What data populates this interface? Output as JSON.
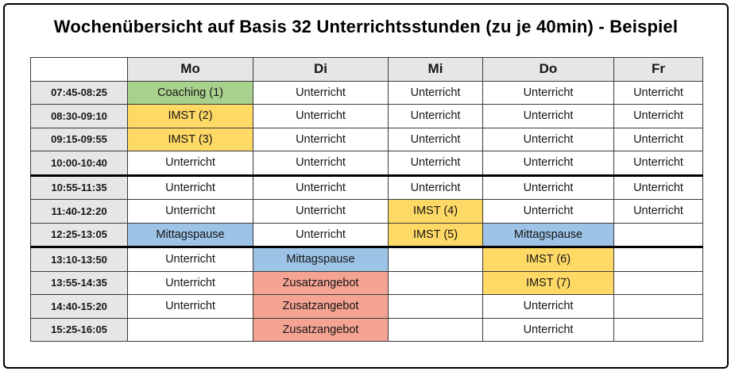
{
  "title": "Wochenübersicht auf Basis 32 Unterrichtsstunden (zu je 40min) - Beispiel",
  "days": [
    "Mo",
    "Di",
    "Mi",
    "Do",
    "Fr"
  ],
  "colors": {
    "gray": "#E7E6E6",
    "green": "#A9D18E",
    "yellow": "#FFD966",
    "blue": "#9DC3E6",
    "salmon": "#F5A392",
    "border": "#3A3A3A"
  },
  "rows": [
    {
      "time": "07:45-08:25",
      "section_break": false,
      "cells": [
        {
          "t": "Coaching (1)",
          "c": "green"
        },
        {
          "t": "Unterricht",
          "c": "none"
        },
        {
          "t": "Unterricht",
          "c": "none"
        },
        {
          "t": "Unterricht",
          "c": "none"
        },
        {
          "t": "Unterricht",
          "c": "none"
        }
      ]
    },
    {
      "time": "08:30-09:10",
      "section_break": false,
      "cells": [
        {
          "t": "IMST (2)",
          "c": "yellow"
        },
        {
          "t": "Unterricht",
          "c": "none"
        },
        {
          "t": "Unterricht",
          "c": "none"
        },
        {
          "t": "Unterricht",
          "c": "none"
        },
        {
          "t": "Unterricht",
          "c": "none"
        }
      ]
    },
    {
      "time": "09:15-09:55",
      "section_break": false,
      "cells": [
        {
          "t": "IMST (3)",
          "c": "yellow"
        },
        {
          "t": "Unterricht",
          "c": "none"
        },
        {
          "t": "Unterricht",
          "c": "none"
        },
        {
          "t": "Unterricht",
          "c": "none"
        },
        {
          "t": "Unterricht",
          "c": "none"
        }
      ]
    },
    {
      "time": "10:00-10:40",
      "section_break": false,
      "cells": [
        {
          "t": "Unterricht",
          "c": "none"
        },
        {
          "t": "Unterricht",
          "c": "none"
        },
        {
          "t": "Unterricht",
          "c": "none"
        },
        {
          "t": "Unterricht",
          "c": "none"
        },
        {
          "t": "Unterricht",
          "c": "none"
        }
      ]
    },
    {
      "time": "10:55-11:35",
      "section_break": true,
      "cells": [
        {
          "t": "Unterricht",
          "c": "none"
        },
        {
          "t": "Unterricht",
          "c": "none"
        },
        {
          "t": "Unterricht",
          "c": "none"
        },
        {
          "t": "Unterricht",
          "c": "none"
        },
        {
          "t": "Unterricht",
          "c": "none"
        }
      ]
    },
    {
      "time": "11:40-12:20",
      "section_break": false,
      "cells": [
        {
          "t": "Unterricht",
          "c": "none"
        },
        {
          "t": "Unterricht",
          "c": "none"
        },
        {
          "t": "IMST (4)",
          "c": "yellow"
        },
        {
          "t": "Unterricht",
          "c": "none"
        },
        {
          "t": "Unterricht",
          "c": "none"
        }
      ]
    },
    {
      "time": "12:25-13:05",
      "section_break": false,
      "cells": [
        {
          "t": "Mittagspause",
          "c": "blue"
        },
        {
          "t": "Unterricht",
          "c": "none"
        },
        {
          "t": "IMST (5)",
          "c": "yellow"
        },
        {
          "t": "Mittagspause",
          "c": "blue"
        },
        {
          "t": "",
          "c": "none"
        }
      ]
    },
    {
      "time": "13:10-13:50",
      "section_break": true,
      "cells": [
        {
          "t": "Unterricht",
          "c": "none"
        },
        {
          "t": "Mittagspause",
          "c": "blue"
        },
        {
          "t": "",
          "c": "none"
        },
        {
          "t": "IMST (6)",
          "c": "yellow"
        },
        {
          "t": "",
          "c": "none"
        }
      ]
    },
    {
      "time": "13:55-14:35",
      "section_break": false,
      "cells": [
        {
          "t": "Unterricht",
          "c": "none"
        },
        {
          "t": "Zusatzangebot",
          "c": "salmon"
        },
        {
          "t": "",
          "c": "none"
        },
        {
          "t": "IMST (7)",
          "c": "yellow"
        },
        {
          "t": "",
          "c": "none"
        }
      ]
    },
    {
      "time": "14:40-15:20",
      "section_break": false,
      "cells": [
        {
          "t": "Unterricht",
          "c": "none"
        },
        {
          "t": "Zusatzangebot",
          "c": "salmon"
        },
        {
          "t": "",
          "c": "none"
        },
        {
          "t": "Unterricht",
          "c": "none"
        },
        {
          "t": "",
          "c": "none"
        }
      ]
    },
    {
      "time": "15:25-16:05",
      "section_break": false,
      "cells": [
        {
          "t": "",
          "c": "none"
        },
        {
          "t": "Zusatzangebot",
          "c": "salmon"
        },
        {
          "t": "",
          "c": "none"
        },
        {
          "t": "Unterricht",
          "c": "none"
        },
        {
          "t": "",
          "c": "none"
        }
      ]
    }
  ]
}
